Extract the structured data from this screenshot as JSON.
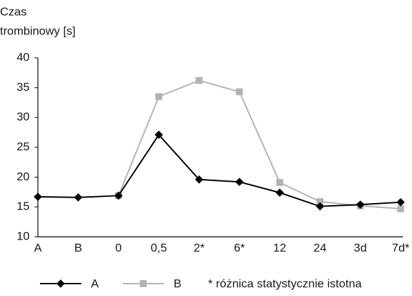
{
  "chart_data": {
    "type": "line",
    "ylabel": [
      "Czas",
      "trombinowy [s]"
    ],
    "categories": [
      "A",
      "B",
      "0",
      "0,5",
      "2*",
      "6*",
      "12",
      "24",
      "3d",
      "7d*"
    ],
    "series": [
      {
        "name": "A",
        "color": "#000000",
        "marker": "diamond",
        "values": [
          16.7,
          16.6,
          16.9,
          27.1,
          19.6,
          19.2,
          17.4,
          15.1,
          15.4,
          15.8
        ]
      },
      {
        "name": "B",
        "color": "#b3b3b3",
        "marker": "square",
        "values": [
          null,
          null,
          16.9,
          33.5,
          36.2,
          34.3,
          19.1,
          15.9,
          15.2,
          14.7
        ]
      }
    ],
    "ylim": [
      10,
      40
    ],
    "yticks": [
      10,
      15,
      20,
      25,
      30,
      35,
      40
    ],
    "annotation": "* różnica statystycznie istotna"
  }
}
